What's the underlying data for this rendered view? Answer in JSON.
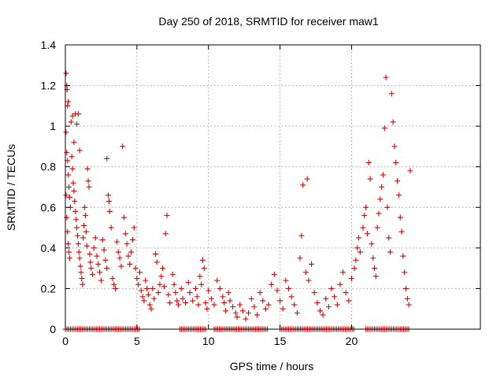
{
  "chart_data": {
    "type": "scatter",
    "title": "Day 250 of 2018, SRMTID for receiver maw1",
    "xlabel": "GPS time / hours",
    "ylabel": "SRMTID / TECUs",
    "xlim": [
      0,
      29
    ],
    "ylim": [
      0,
      1.4
    ],
    "xticks": [
      0,
      5,
      10,
      15,
      20
    ],
    "xtick_labels": [
      "0",
      "5",
      "10",
      "15",
      "20"
    ],
    "yticks": [
      0,
      0.2,
      0.4,
      0.6,
      0.8,
      1.0,
      1.2,
      1.4
    ],
    "ytick_labels": [
      "0",
      "0.2",
      "0.4",
      "0.6",
      "0.8",
      "1",
      "1.2",
      "1.4"
    ],
    "grid": true,
    "marker": "plus",
    "color": "#e00000",
    "series": [
      {
        "name": "maw1",
        "points": [
          [
            0.05,
            1.26
          ],
          [
            0.1,
            1.2
          ],
          [
            0.12,
            1.18
          ],
          [
            0.15,
            1.1
          ],
          [
            0.2,
            1.12
          ],
          [
            0.05,
            0.97
          ],
          [
            0.1,
            0.87
          ],
          [
            0.15,
            0.83
          ],
          [
            0.2,
            0.76
          ],
          [
            0.25,
            0.7
          ],
          [
            0.3,
            0.65
          ],
          [
            0.35,
            0.6
          ],
          [
            0.1,
            0.55
          ],
          [
            0.15,
            0.48
          ],
          [
            0.2,
            0.42
          ],
          [
            0.25,
            0.38
          ],
          [
            0.3,
            0.35
          ],
          [
            0.05,
            0.66
          ],
          [
            0.4,
            1.02
          ],
          [
            0.5,
            1.05
          ],
          [
            0.6,
            0.92
          ],
          [
            0.7,
            1.06
          ],
          [
            0.8,
            1.01
          ],
          [
            0.9,
            1.06
          ],
          [
            0.45,
            0.85
          ],
          [
            0.5,
            0.79
          ],
          [
            0.55,
            0.72
          ],
          [
            0.6,
            0.68
          ],
          [
            0.65,
            0.63
          ],
          [
            0.7,
            0.58
          ],
          [
            0.75,
            0.54
          ],
          [
            0.8,
            0.5
          ],
          [
            0.85,
            0.46
          ],
          [
            0.9,
            0.42
          ],
          [
            0.95,
            0.38
          ],
          [
            1.0,
            0.88
          ],
          [
            1.0,
            0.35
          ],
          [
            1.05,
            0.31
          ],
          [
            1.1,
            0.28
          ],
          [
            1.15,
            0.25
          ],
          [
            1.2,
            0.22
          ],
          [
            1.25,
            0.45
          ],
          [
            1.3,
            0.51
          ],
          [
            1.35,
            0.6
          ],
          [
            1.4,
            0.56
          ],
          [
            1.45,
            0.48
          ],
          [
            1.5,
            0.41
          ],
          [
            1.55,
            0.79
          ],
          [
            1.6,
            0.73
          ],
          [
            1.65,
            0.7
          ],
          [
            1.7,
            0.37
          ],
          [
            1.75,
            0.33
          ],
          [
            1.8,
            0.3
          ],
          [
            1.9,
            0.27
          ],
          [
            2.0,
            0.4
          ],
          [
            2.1,
            0.45
          ],
          [
            2.2,
            0.36
          ],
          [
            2.3,
            0.32
          ],
          [
            2.4,
            0.28
          ],
          [
            2.5,
            0.24
          ],
          [
            2.6,
            0.44
          ],
          [
            2.7,
            0.39
          ],
          [
            2.8,
            0.34
          ],
          [
            2.9,
            0.3
          ],
          [
            2.9,
            0.84
          ],
          [
            3.0,
            0.66
          ],
          [
            3.05,
            0.63
          ],
          [
            3.1,
            0.58
          ],
          [
            3.2,
            0.5
          ],
          [
            3.3,
            0.25
          ],
          [
            3.4,
            0.22
          ],
          [
            3.5,
            0.2
          ],
          [
            3.6,
            0.43
          ],
          [
            3.7,
            0.38
          ],
          [
            3.8,
            0.35
          ],
          [
            3.9,
            0.31
          ],
          [
            4.0,
            0.9
          ],
          [
            4.1,
            0.55
          ],
          [
            4.2,
            0.47
          ],
          [
            4.3,
            0.42
          ],
          [
            4.4,
            0.36
          ],
          [
            4.5,
            0.32
          ],
          [
            4.6,
            0.38
          ],
          [
            4.7,
            0.44
          ],
          [
            4.8,
            0.5
          ],
          [
            4.9,
            0.3
          ],
          [
            5.0,
            0.25
          ],
          [
            5.1,
            0.22
          ],
          [
            5.2,
            0.28
          ],
          [
            5.3,
            0.19
          ],
          [
            5.4,
            0.16
          ],
          [
            5.5,
            0.14
          ],
          [
            5.6,
            0.24
          ],
          [
            5.7,
            0.2
          ],
          [
            5.8,
            0.17
          ],
          [
            5.9,
            0.12
          ],
          [
            6.0,
            0.1
          ],
          [
            6.1,
            0.2
          ],
          [
            6.2,
            0.15
          ],
          [
            6.3,
            0.37
          ],
          [
            6.4,
            0.33
          ],
          [
            6.5,
            0.18
          ],
          [
            6.6,
            0.22
          ],
          [
            6.7,
            0.26
          ],
          [
            6.8,
            0.3
          ],
          [
            6.9,
            0.21
          ],
          [
            7.0,
            0.47
          ],
          [
            7.1,
            0.56
          ],
          [
            7.2,
            0.17
          ],
          [
            7.3,
            0.13
          ],
          [
            7.5,
            0.27
          ],
          [
            7.6,
            0.22
          ],
          [
            7.7,
            0.18
          ],
          [
            7.8,
            0.14
          ],
          [
            7.9,
            0.12
          ],
          [
            8.1,
            0.2
          ],
          [
            8.2,
            0.15
          ],
          [
            8.4,
            0.13
          ],
          [
            8.6,
            0.23
          ],
          [
            8.7,
            0.18
          ],
          [
            8.9,
            0.14
          ],
          [
            9.1,
            0.2
          ],
          [
            9.2,
            0.16
          ],
          [
            9.3,
            0.12
          ],
          [
            9.4,
            0.26
          ],
          [
            9.5,
            0.22
          ],
          [
            9.6,
            0.34
          ],
          [
            9.7,
            0.3
          ],
          [
            9.8,
            0.13
          ],
          [
            9.9,
            0.1
          ],
          [
            10.0,
            0.19
          ],
          [
            10.2,
            0.15
          ],
          [
            10.4,
            0.12
          ],
          [
            10.6,
            0.24
          ],
          [
            10.8,
            0.2
          ],
          [
            11.0,
            0.16
          ],
          [
            11.1,
            0.13
          ],
          [
            11.2,
            0.09
          ],
          [
            11.4,
            0.18
          ],
          [
            11.5,
            0.14
          ],
          [
            11.7,
            0.11
          ],
          [
            11.9,
            0.08
          ],
          [
            12.0,
            0.06
          ],
          [
            12.2,
            0.12
          ],
          [
            12.4,
            0.09
          ],
          [
            12.6,
            0.05
          ],
          [
            12.8,
            0.08
          ],
          [
            13.0,
            0.15
          ],
          [
            13.2,
            0.11
          ],
          [
            13.4,
            0.07
          ],
          [
            13.6,
            0.18
          ],
          [
            13.8,
            0.14
          ],
          [
            14.0,
            0.1
          ],
          [
            14.2,
            0.12
          ],
          [
            14.4,
            0.22
          ],
          [
            14.6,
            0.27
          ],
          [
            14.8,
            0.19
          ],
          [
            15.0,
            0.14
          ],
          [
            15.2,
            0.1
          ],
          [
            15.4,
            0.24
          ],
          [
            15.6,
            0.2
          ],
          [
            15.8,
            0.16
          ],
          [
            16.0,
            0.12
          ],
          [
            16.2,
            0.08
          ],
          [
            16.4,
            0.35
          ],
          [
            16.5,
            0.46
          ],
          [
            16.6,
            0.71
          ],
          [
            16.8,
            0.28
          ],
          [
            16.9,
            0.74
          ],
          [
            17.0,
            0.24
          ],
          [
            17.2,
            0.32
          ],
          [
            17.4,
            0.18
          ],
          [
            17.6,
            0.13
          ],
          [
            17.8,
            0.09
          ],
          [
            18.0,
            0.07
          ],
          [
            18.2,
            0.15
          ],
          [
            18.4,
            0.11
          ],
          [
            18.6,
            0.2
          ],
          [
            18.8,
            0.16
          ],
          [
            19.0,
            0.12
          ],
          [
            19.2,
            0.22
          ],
          [
            19.4,
            0.28
          ],
          [
            19.6,
            0.18
          ],
          [
            19.8,
            0.14
          ],
          [
            20.0,
            0.25
          ],
          [
            20.2,
            0.3
          ],
          [
            20.3,
            0.34
          ],
          [
            20.4,
            0.4
          ],
          [
            20.5,
            0.45
          ],
          [
            20.6,
            0.38
          ],
          [
            20.8,
            0.5
          ],
          [
            20.9,
            0.56
          ],
          [
            21.0,
            0.6
          ],
          [
            21.1,
            0.47
          ],
          [
            21.2,
            0.82
          ],
          [
            21.3,
            0.74
          ],
          [
            21.4,
            0.42
          ],
          [
            21.5,
            0.35
          ],
          [
            21.6,
            0.3
          ],
          [
            21.7,
            0.26
          ],
          [
            21.8,
            0.5
          ],
          [
            21.9,
            0.57
          ],
          [
            22.0,
            0.64
          ],
          [
            22.1,
            0.7
          ],
          [
            22.2,
            0.76
          ],
          [
            22.3,
            0.99
          ],
          [
            22.4,
            1.24
          ],
          [
            22.5,
            0.6
          ],
          [
            22.6,
            0.45
          ],
          [
            22.7,
            0.38
          ],
          [
            22.8,
            1.16
          ],
          [
            22.9,
            1.02
          ],
          [
            23.0,
            0.9
          ],
          [
            23.1,
            0.82
          ],
          [
            23.2,
            0.73
          ],
          [
            23.3,
            0.66
          ],
          [
            23.4,
            0.55
          ],
          [
            23.5,
            0.48
          ],
          [
            23.6,
            0.36
          ],
          [
            23.7,
            0.28
          ],
          [
            23.8,
            0.2
          ],
          [
            23.9,
            0.15
          ],
          [
            24.0,
            0.12
          ],
          [
            24.1,
            0.78
          ]
        ]
      }
    ],
    "zero_band": {
      "y": 0,
      "x_ranges": [
        [
          0.0,
          5.2
        ],
        [
          8.0,
          9.8
        ],
        [
          10.4,
          14.2
        ],
        [
          15.0,
          20.2
        ],
        [
          21.0,
          24.1
        ]
      ]
    }
  }
}
